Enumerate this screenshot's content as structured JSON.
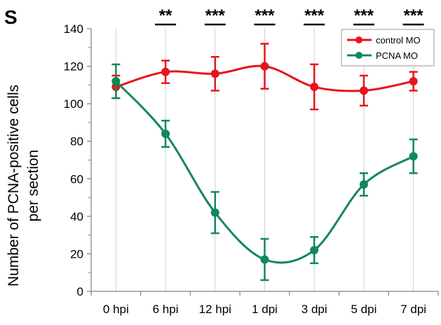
{
  "chart_data": {
    "type": "line",
    "panel_label": "S",
    "categories": [
      "0 hpi",
      "6 hpi",
      "12 hpi",
      "1 dpi",
      "3 dpi",
      "5 dpi",
      "7 dpi"
    ],
    "ylabel_lines": [
      "Number of PCNA-positive cells",
      "per section"
    ],
    "xlabel": "",
    "ylim": [
      0,
      140
    ],
    "yticks": [
      0,
      20,
      40,
      60,
      80,
      100,
      120,
      140
    ],
    "grid": "vertical",
    "legend_position": "top-right",
    "significance": [
      "",
      "**",
      "***",
      "***",
      "***",
      "***",
      "***"
    ],
    "series": [
      {
        "name": "control MO",
        "color": "#e8131d",
        "values": [
          109,
          117,
          116,
          120,
          109,
          107,
          112
        ],
        "error": [
          6,
          6,
          9,
          12,
          12,
          8,
          5
        ]
      },
      {
        "name": "PCNA MO",
        "color": "#11885a",
        "values": [
          112,
          84,
          42,
          17,
          22,
          57,
          72
        ],
        "error": [
          9,
          7,
          11,
          11,
          7,
          6,
          9
        ]
      }
    ]
  }
}
